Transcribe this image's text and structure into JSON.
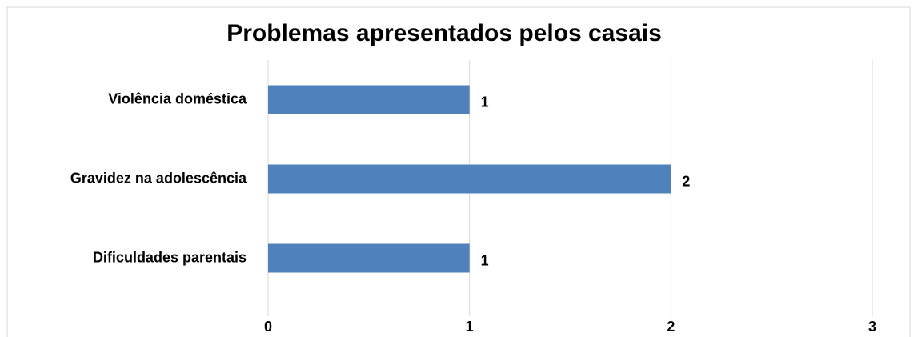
{
  "chart_data": {
    "type": "hbar",
    "title": "Problemas apresentados pelos casais",
    "categories": [
      "Violência doméstica",
      "Gravidez na adolescência",
      "Dificuldades parentais"
    ],
    "values": [
      1,
      2,
      1
    ],
    "color": "#4f81bd",
    "xlim": [
      0,
      3
    ],
    "xticks": [
      0,
      1,
      2,
      3
    ],
    "grid": true
  }
}
